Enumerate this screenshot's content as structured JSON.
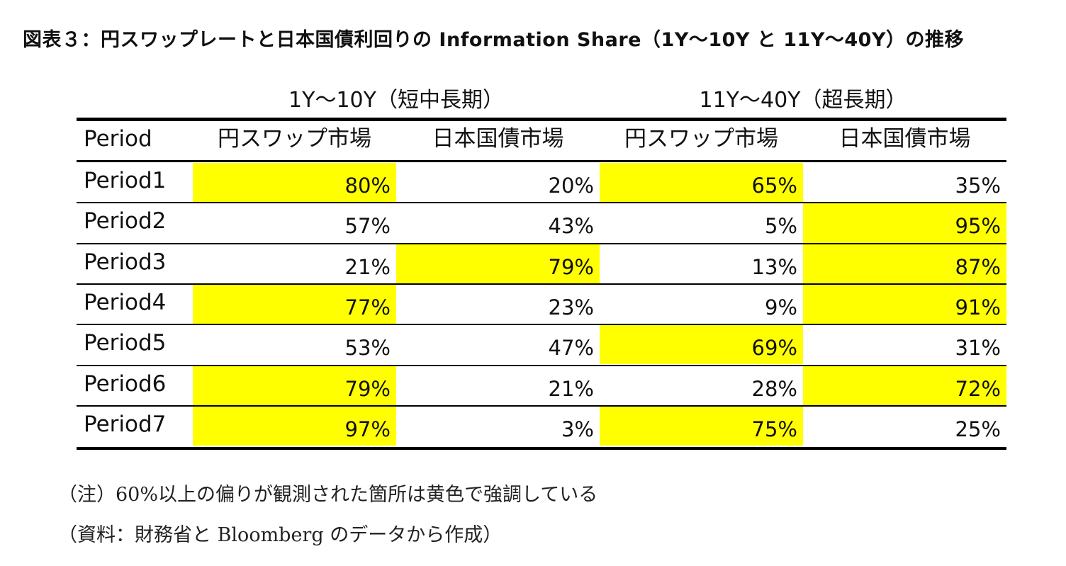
{
  "chart_data": {
    "type": "table",
    "title": "図表３：円スワップレートと日本国債利回りの Information Share（1Y～10Y と 11Y～40Y）の推移",
    "group_headers": [
      "1Y～10Y（短中長期）",
      "11Y～40Y（超長期）"
    ],
    "column_headers": [
      "Period",
      "円スワップ市場",
      "日本国債市場",
      "円スワップ市場",
      "日本国債市場"
    ],
    "rows": [
      {
        "label": "Period1",
        "values": [
          "80%",
          "20%",
          "65%",
          "35%"
        ],
        "highlight": [
          true,
          false,
          true,
          false
        ]
      },
      {
        "label": "Period2",
        "values": [
          "57%",
          "43%",
          "5%",
          "95%"
        ],
        "highlight": [
          false,
          false,
          false,
          true
        ]
      },
      {
        "label": "Period3",
        "values": [
          "21%",
          "79%",
          "13%",
          "87%"
        ],
        "highlight": [
          false,
          true,
          false,
          true
        ]
      },
      {
        "label": "Period4",
        "values": [
          "77%",
          "23%",
          "9%",
          "91%"
        ],
        "highlight": [
          true,
          false,
          false,
          true
        ]
      },
      {
        "label": "Period5",
        "values": [
          "53%",
          "47%",
          "69%",
          "31%"
        ],
        "highlight": [
          false,
          false,
          true,
          false
        ]
      },
      {
        "label": "Period6",
        "values": [
          "79%",
          "21%",
          "28%",
          "72%"
        ],
        "highlight": [
          true,
          false,
          false,
          true
        ]
      },
      {
        "label": "Period7",
        "values": [
          "97%",
          "3%",
          "75%",
          "25%"
        ],
        "highlight": [
          true,
          false,
          true,
          false
        ]
      }
    ],
    "highlight_color": "#ffff00",
    "notes": [
      "（注）60%以上の偏りが観測された箇所は黄色で強調している",
      "（資料：財務省と Bloomberg のデータから作成）"
    ]
  }
}
